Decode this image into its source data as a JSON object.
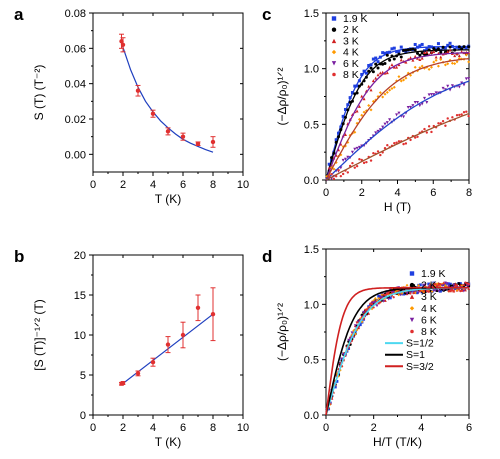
{
  "colors": {
    "axis": "#000000",
    "fit_line": "#1f3fbf",
    "error_points": "#e03030",
    "series": {
      "1.9 K": "#1f3fe0",
      "2 K": "#000000",
      "3 K": "#d02020",
      "4 K": "#ff9a00",
      "6 K": "#7a1fa0",
      "8 K": "#e03030"
    },
    "model_fit": {
      "S=1/2": "#4dd8f0",
      "S=1": "#000000",
      "S=3/2": "#d02020"
    }
  },
  "chart_data": [
    {
      "panel": "a",
      "type": "scatter",
      "xlabel": "T (K)",
      "ylabel": "S (T) (T⁻²)",
      "xlim": [
        0,
        10
      ],
      "ylim": [
        -0.01,
        0.08
      ],
      "xticks": [
        "0",
        "2",
        "4",
        "6",
        "8",
        "10"
      ],
      "yticks": [
        "0.00",
        "0.02",
        "0.04",
        "0.06",
        "0.08"
      ],
      "points": {
        "x": [
          1.9,
          2,
          3,
          4,
          5,
          6,
          7,
          8
        ],
        "y": [
          0.064,
          0.062,
          0.036,
          0.023,
          0.013,
          0.01,
          0.006,
          0.007
        ],
        "err": [
          0.004,
          0.004,
          0.003,
          0.002,
          0.002,
          0.002,
          0.001,
          0.003
        ]
      },
      "fit": {
        "x": [
          1.9,
          2.5,
          3,
          3.5,
          4,
          4.5,
          5,
          5.5,
          6,
          6.5,
          7,
          7.5,
          8
        ],
        "y": [
          0.063,
          0.048,
          0.038,
          0.03,
          0.024,
          0.019,
          0.015,
          0.0115,
          0.0085,
          0.0063,
          0.0045,
          0.0027,
          0.0012
        ]
      }
    },
    {
      "panel": "b",
      "type": "scatter",
      "xlabel": "T (K)",
      "ylabel": "[S (T)]⁻¹ᐟ² (T)",
      "xlim": [
        0,
        10
      ],
      "ylim": [
        0,
        20
      ],
      "xticks": [
        "0",
        "2",
        "4",
        "6",
        "8",
        "10"
      ],
      "yticks": [
        "0",
        "5",
        "10",
        "15",
        "20"
      ],
      "points": {
        "x": [
          1.9,
          2,
          3,
          4,
          5,
          6,
          7,
          8
        ],
        "y": [
          3.9,
          4.0,
          5.2,
          6.6,
          8.8,
          10.0,
          13.4,
          12.6
        ],
        "err": [
          0.15,
          0.15,
          0.3,
          0.5,
          1.0,
          1.6,
          1.6,
          3.3
        ]
      },
      "fit": {
        "x": [
          1.9,
          8
        ],
        "y": [
          3.8,
          12.6
        ]
      }
    },
    {
      "panel": "c",
      "type": "scatter",
      "xlabel": "H (T)",
      "ylabel": "(−Δρ/ρ₀)¹ᐟ²",
      "xlim": [
        0,
        8
      ],
      "ylim": [
        0,
        1.5
      ],
      "xticks": [
        "0",
        "2",
        "4",
        "6",
        "8"
      ],
      "yticks": [
        "0.0",
        "0.5",
        "1.0",
        "1.5"
      ],
      "legend": [
        "1.9 K",
        "2 K",
        "3 K",
        "4 K",
        "6 K",
        "8 K"
      ],
      "series": [
        {
          "name": "1.9 K",
          "marker": "square",
          "Cs": 1.2,
          "k": 0.52
        },
        {
          "name": "2 K",
          "marker": "circle",
          "Cs": 1.17,
          "k": 0.48
        },
        {
          "name": "3 K",
          "marker": "triangle",
          "Cs": 1.15,
          "k": 0.37
        },
        {
          "name": "4 K",
          "marker": "diamond",
          "Cs": 1.12,
          "k": 0.27
        },
        {
          "name": "6 K",
          "marker": "tri-down",
          "Cs": 1.1,
          "k": 0.14
        },
        {
          "name": "8 K",
          "marker": "dot",
          "Cs": 1.1,
          "k": 0.076
        }
      ]
    },
    {
      "panel": "d",
      "type": "scatter",
      "xlabel": "H/T (T/K)",
      "ylabel": "(−Δρ/ρ₀)¹ᐟ²",
      "xlim": [
        0,
        6
      ],
      "ylim": [
        0,
        1.5
      ],
      "xticks": [
        "0",
        "2",
        "4",
        "6"
      ],
      "yticks": [
        "0.0",
        "0.5",
        "1.0",
        "1.5"
      ],
      "legend": [
        "1.9 K",
        "2 K",
        "3 K",
        "4 K",
        "6 K",
        "8 K",
        "S=1/2",
        "S=1",
        "S=3/2"
      ],
      "fits": [
        {
          "name": "S=1/2",
          "Cs": 1.15,
          "k": 0.65
        },
        {
          "name": "S=1",
          "Cs": 1.15,
          "k": 0.85
        },
        {
          "name": "S=3/2",
          "Cs": 1.15,
          "k": 1.45
        }
      ],
      "data_Cs": 1.16,
      "data_k": 0.62
    }
  ]
}
